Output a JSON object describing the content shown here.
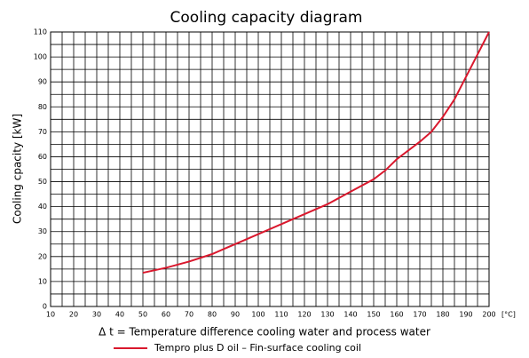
{
  "chart_data": {
    "type": "line",
    "title": "Cooling capacity diagram",
    "xlabel": "Δ t = Temperature difference cooling water and process water",
    "ylabel": "Cooling cpacity [kW]",
    "xunit": "[°C]",
    "x": [
      50,
      60,
      70,
      80,
      90,
      100,
      110,
      120,
      130,
      140,
      150,
      155,
      160,
      170,
      175,
      180,
      185,
      190,
      195,
      200
    ],
    "series": [
      {
        "name": "Tempro plus D oil – Fin-surface cooling coil",
        "color": "#d9182d",
        "values": [
          13.5,
          15.5,
          18,
          21,
          25,
          29,
          33,
          37,
          41,
          46,
          51,
          54.5,
          59,
          66,
          70,
          76,
          83,
          92,
          101,
          110
        ]
      }
    ],
    "xlim": [
      10,
      200
    ],
    "ylim": [
      0,
      110
    ],
    "xticks": [
      10,
      20,
      30,
      40,
      50,
      60,
      70,
      80,
      90,
      100,
      110,
      120,
      130,
      140,
      150,
      160,
      170,
      180,
      190,
      200
    ],
    "yticks": [
      0,
      10,
      20,
      30,
      40,
      50,
      60,
      70,
      80,
      90,
      100,
      110
    ],
    "grid": true,
    "legend": "bottom"
  }
}
